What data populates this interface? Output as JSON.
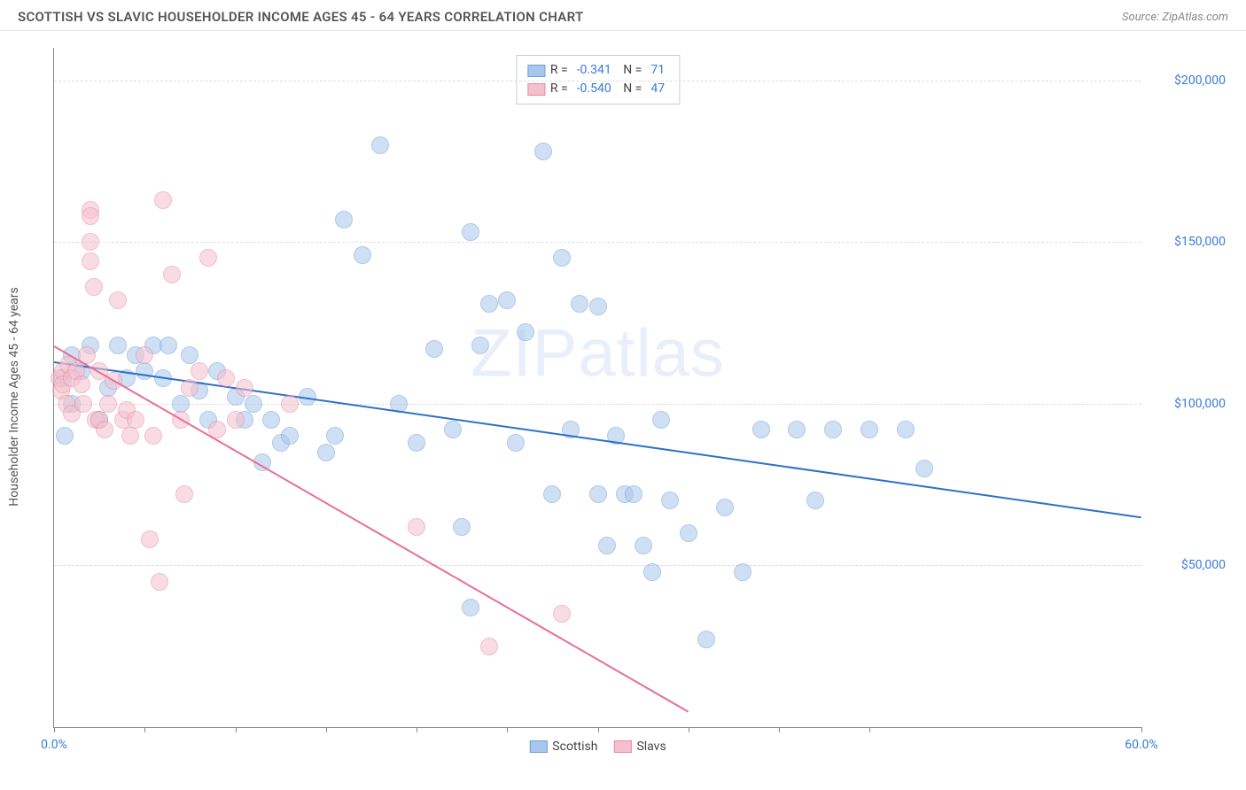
{
  "header": {
    "title": "SCOTTISH VS SLAVIC HOUSEHOLDER INCOME AGES 45 - 64 YEARS CORRELATION CHART",
    "source": "Source: ZipAtlas.com"
  },
  "chart": {
    "type": "scatter",
    "y_axis_label": "Householder Income Ages 45 - 64 years",
    "watermark": "ZIPatlas",
    "xlim": [
      0,
      60
    ],
    "ylim": [
      0,
      210000
    ],
    "x_ticks": [
      0,
      5,
      10,
      15,
      20,
      25,
      30,
      35,
      40,
      45,
      60
    ],
    "x_tick_labels": {
      "0": "0.0%",
      "60": "60.0%"
    },
    "y_ticks": [
      50000,
      100000,
      150000,
      200000
    ],
    "y_tick_labels": {
      "50000": "$50,000",
      "100000": "$100,000",
      "150000": "$150,000",
      "200000": "$200,000"
    },
    "axis_label_color": "#3a7ad9",
    "grid_color": "#dddddd",
    "background_color": "#ffffff",
    "marker_radius": 10,
    "marker_opacity": 0.55,
    "series": [
      {
        "name": "Scottish",
        "fill_color": "#a9c7ec",
        "stroke_color": "#6c9fd8",
        "line_color": "#2f6fc7",
        "R": "-0.341",
        "N": "71",
        "trend": {
          "x1": 0,
          "y1": 113000,
          "x2": 60,
          "y2": 65000
        },
        "points": [
          [
            0.5,
            108000
          ],
          [
            0.6,
            90000
          ],
          [
            1,
            115000
          ],
          [
            1.5,
            110000
          ],
          [
            2,
            118000
          ],
          [
            2.5,
            95000
          ],
          [
            3,
            105000
          ],
          [
            3.5,
            118000
          ],
          [
            4,
            108000
          ],
          [
            4.5,
            115000
          ],
          [
            5,
            110000
          ],
          [
            5.5,
            118000
          ],
          [
            6,
            108000
          ],
          [
            6.3,
            118000
          ],
          [
            7,
            100000
          ],
          [
            7.5,
            115000
          ],
          [
            8,
            104000
          ],
          [
            8.5,
            95000
          ],
          [
            9,
            110000
          ],
          [
            10,
            102000
          ],
          [
            10.5,
            95000
          ],
          [
            11,
            100000
          ],
          [
            11.5,
            82000
          ],
          [
            12,
            95000
          ],
          [
            12.5,
            88000
          ],
          [
            13,
            90000
          ],
          [
            14,
            102000
          ],
          [
            15,
            85000
          ],
          [
            15.5,
            90000
          ],
          [
            16,
            157000
          ],
          [
            17,
            146000
          ],
          [
            18,
            180000
          ],
          [
            19,
            100000
          ],
          [
            20,
            88000
          ],
          [
            21,
            117000
          ],
          [
            22,
            92000
          ],
          [
            22.5,
            62000
          ],
          [
            23,
            153000
          ],
          [
            23,
            37000
          ],
          [
            23.5,
            118000
          ],
          [
            24,
            131000
          ],
          [
            25,
            132000
          ],
          [
            25.5,
            88000
          ],
          [
            26,
            122000
          ],
          [
            27,
            178000
          ],
          [
            27.5,
            72000
          ],
          [
            28,
            145000
          ],
          [
            28.5,
            92000
          ],
          [
            29,
            131000
          ],
          [
            30,
            72000
          ],
          [
            30.5,
            56000
          ],
          [
            31,
            90000
          ],
          [
            31.5,
            72000
          ],
          [
            32,
            72000
          ],
          [
            32.5,
            56000
          ],
          [
            33,
            48000
          ],
          [
            34,
            70000
          ],
          [
            35,
            60000
          ],
          [
            36,
            27000
          ],
          [
            37,
            68000
          ],
          [
            38,
            48000
          ],
          [
            39,
            92000
          ],
          [
            41,
            92000
          ],
          [
            43,
            92000
          ],
          [
            45,
            92000
          ],
          [
            47,
            92000
          ],
          [
            48,
            80000
          ],
          [
            42,
            70000
          ],
          [
            33.5,
            95000
          ],
          [
            30,
            130000
          ],
          [
            1,
            100000
          ]
        ]
      },
      {
        "name": "Slavs",
        "fill_color": "#f5c0cd",
        "stroke_color": "#e889a3",
        "line_color": "#e76f93",
        "R": "-0.540",
        "N": "47",
        "trend": {
          "x1": 0,
          "y1": 118000,
          "x2": 35,
          "y2": 5000
        },
        "points": [
          [
            0.3,
            108000
          ],
          [
            0.4,
            104000
          ],
          [
            0.5,
            110000
          ],
          [
            0.5,
            106000
          ],
          [
            0.7,
            100000
          ],
          [
            0.8,
            112000
          ],
          [
            1,
            108000
          ],
          [
            1,
            97000
          ],
          [
            1.2,
            110000
          ],
          [
            1.5,
            106000
          ],
          [
            1.8,
            115000
          ],
          [
            2,
            160000
          ],
          [
            2,
            158000
          ],
          [
            2,
            150000
          ],
          [
            2,
            144000
          ],
          [
            2.2,
            136000
          ],
          [
            2.3,
            95000
          ],
          [
            2.5,
            110000
          ],
          [
            2.5,
            95000
          ],
          [
            2.8,
            92000
          ],
          [
            3,
            100000
          ],
          [
            3.3,
            107000
          ],
          [
            3.5,
            132000
          ],
          [
            3.8,
            95000
          ],
          [
            4,
            98000
          ],
          [
            4.2,
            90000
          ],
          [
            4.5,
            95000
          ],
          [
            5,
            115000
          ],
          [
            5.3,
            58000
          ],
          [
            5.5,
            90000
          ],
          [
            5.8,
            45000
          ],
          [
            6,
            163000
          ],
          [
            6.5,
            140000
          ],
          [
            7,
            95000
          ],
          [
            7.2,
            72000
          ],
          [
            7.5,
            105000
          ],
          [
            8,
            110000
          ],
          [
            8.5,
            145000
          ],
          [
            9,
            92000
          ],
          [
            9.5,
            108000
          ],
          [
            10,
            95000
          ],
          [
            10.5,
            105000
          ],
          [
            13,
            100000
          ],
          [
            20,
            62000
          ],
          [
            24,
            25000
          ],
          [
            28,
            35000
          ],
          [
            1.6,
            100000
          ]
        ]
      }
    ],
    "bottom_legend": [
      {
        "label": "Scottish",
        "fill": "#a9c7ec",
        "stroke": "#6c9fd8"
      },
      {
        "label": "Slavs",
        "fill": "#f5c0cd",
        "stroke": "#e889a3"
      }
    ]
  }
}
